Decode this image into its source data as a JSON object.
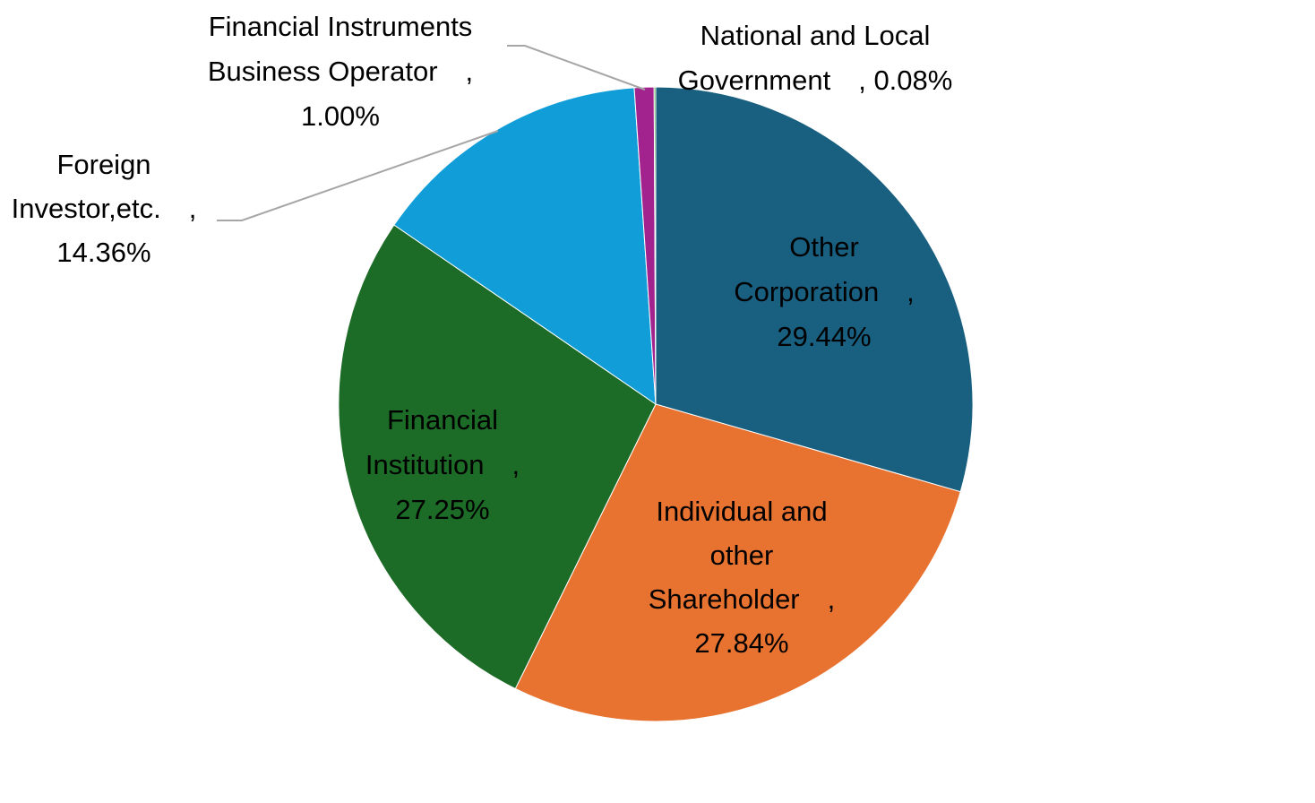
{
  "chart_data": {
    "type": "pie",
    "title": "",
    "start_angle_deg": 0,
    "direction": "clockwise",
    "slices": [
      {
        "label": "Other Corporation",
        "value": 29.44,
        "display": "29.44%",
        "color": "#185f80",
        "label_lines": [
          "Other",
          "Corporation　,",
          "29.44%"
        ]
      },
      {
        "label": "Individual and other Shareholder",
        "value": 27.84,
        "display": "27.84%",
        "color": "#e87331",
        "label_lines": [
          "Individual and",
          "other",
          "Shareholder　,",
          "27.84%"
        ]
      },
      {
        "label": "Financial Institution",
        "value": 27.25,
        "display": "27.25%",
        "color": "#1c6b26",
        "label_lines": [
          "Financial",
          "Institution　,",
          "27.25%"
        ]
      },
      {
        "label": "Foreign Investor,etc.",
        "value": 14.36,
        "display": "14.36%",
        "color": "#119ed8",
        "label_lines": [
          "Foreign",
          "Investor,etc.　,",
          "14.36%"
        ]
      },
      {
        "label": "Financial Instruments Business Operator",
        "value": 1.0,
        "display": "1.00%",
        "color": "#a2238e",
        "label_lines": [
          "Financial Instruments",
          "Business Operator　,",
          "1.00%"
        ]
      },
      {
        "label": "National and Local Government",
        "value": 0.08,
        "display": "0.08%",
        "color": "#3a9a36",
        "label_lines": [
          "National and Local",
          "Government　, 0.08%"
        ]
      }
    ]
  }
}
